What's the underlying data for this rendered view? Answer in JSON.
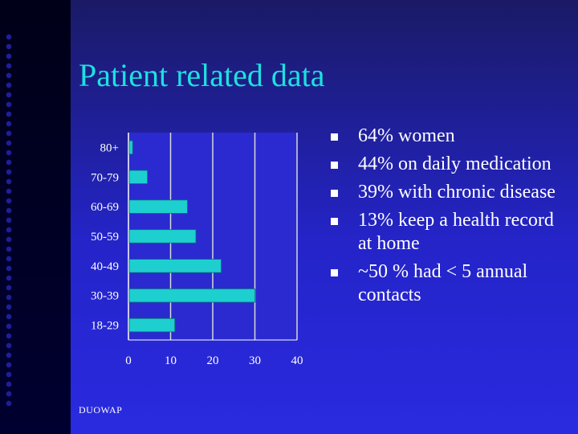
{
  "slide": {
    "title": "Patient related data",
    "footer": "DUOWAP"
  },
  "bullets": [
    "64% women",
    "44% on daily medication",
    "39% with chronic disease",
    "13% keep a health record at home",
    "~50 % had < 5 annual contacts"
  ],
  "colors": {
    "title": "#1ee0e0",
    "bar": "#1ecfcf",
    "plot_background": "#2a2ad0",
    "grid": "#d8d8d8"
  },
  "chart_data": {
    "type": "bar",
    "orientation": "horizontal",
    "categories": [
      "80+",
      "70-79",
      "60-69",
      "50-59",
      "40-49",
      "30-39",
      "18-29"
    ],
    "values": [
      1,
      4.5,
      14,
      16,
      22,
      30,
      11
    ],
    "xticks": [
      0,
      10,
      20,
      30,
      40
    ],
    "xlim": [
      0,
      40
    ],
    "grid": "vertical",
    "legend": "none",
    "title": "",
    "xlabel": "",
    "ylabel": ""
  }
}
